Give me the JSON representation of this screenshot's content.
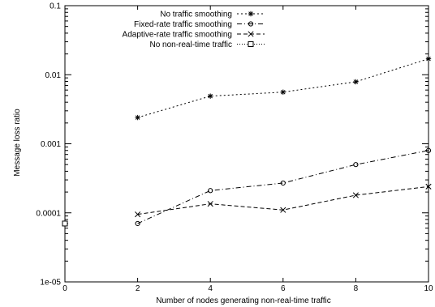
{
  "chart_data": {
    "type": "line",
    "title": "",
    "xlabel": "Number of nodes generating non-real-time traffic",
    "ylabel": "Message loss ratio",
    "xlim": [
      0,
      10
    ],
    "ylim": [
      1e-05,
      0.1
    ],
    "yscale": "log",
    "grid": false,
    "legend_position": "top-left",
    "x_ticks": [
      0,
      2,
      4,
      6,
      8,
      10
    ],
    "x_tick_labels": [
      "0",
      "2",
      "4",
      "6",
      "8",
      "10"
    ],
    "y_ticks": [
      1e-05,
      0.0001,
      0.001,
      0.01,
      0.1
    ],
    "y_tick_labels": [
      "1e-05",
      "0.0001",
      "0.001",
      "0.01",
      "0.1"
    ],
    "series": [
      {
        "name": "No traffic smoothing",
        "marker": "asterisk",
        "dash": "dotted",
        "x": [
          2,
          4,
          6,
          8,
          10
        ],
        "y": [
          0.0024,
          0.0049,
          0.0056,
          0.0079,
          0.017
        ]
      },
      {
        "name": "Fixed-rate traffic smoothing",
        "marker": "circle",
        "dash": "dash-dot",
        "x": [
          2,
          4,
          6,
          8,
          10
        ],
        "y": [
          7e-05,
          0.00021,
          0.00027,
          0.0005,
          0.0008
        ]
      },
      {
        "name": "Adaptive-rate traffic smoothing",
        "marker": "x",
        "dash": "dashed",
        "x": [
          2,
          4,
          6,
          8,
          10
        ],
        "y": [
          9.5e-05,
          0.000135,
          0.00011,
          0.00018,
          0.00024
        ]
      },
      {
        "name": "No non-real-time traffic",
        "marker": "square",
        "dash": "fine-dotted",
        "x": [
          0
        ],
        "y": [
          7e-05
        ]
      }
    ]
  }
}
